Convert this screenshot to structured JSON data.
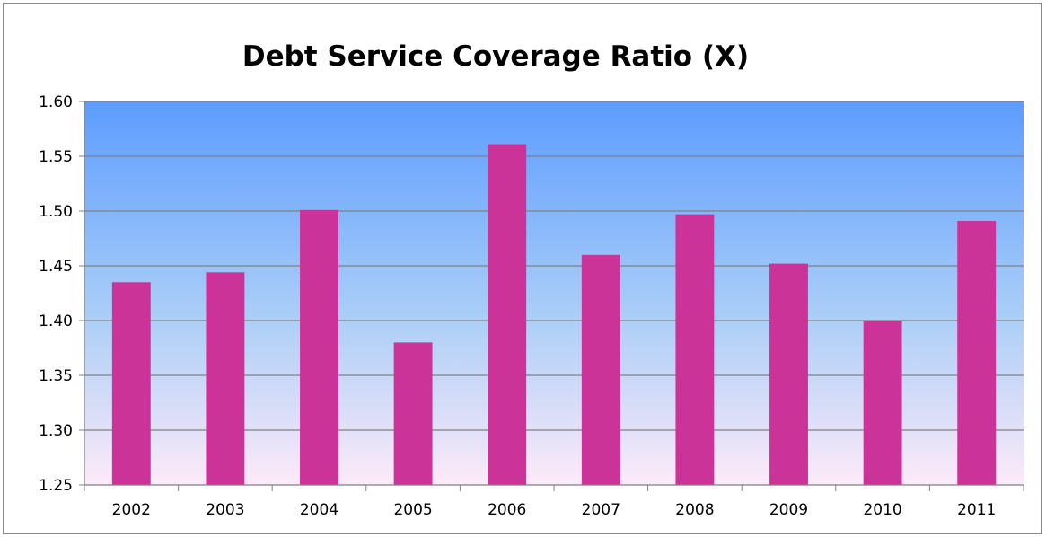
{
  "chart_data": {
    "type": "bar",
    "title": "Debt Service Coverage Ratio (X)",
    "categories": [
      "2002",
      "2003",
      "2004",
      "2005",
      "2006",
      "2007",
      "2008",
      "2009",
      "2010",
      "2011"
    ],
    "values": [
      1.435,
      1.444,
      1.501,
      1.38,
      1.561,
      1.46,
      1.497,
      1.452,
      1.4,
      1.491
    ],
    "ylim": [
      1.25,
      1.6
    ],
    "yticks": [
      "1.25",
      "1.30",
      "1.35",
      "1.40",
      "1.45",
      "1.50",
      "1.55",
      "1.60"
    ],
    "xlabel": "",
    "ylabel": "",
    "grid": true,
    "legend": "none",
    "colors": {
      "bar": "#cc3399",
      "gradient_top": "#5c9cff",
      "gradient_bottom": "#fdeaf8",
      "gridline": "#808080"
    }
  }
}
